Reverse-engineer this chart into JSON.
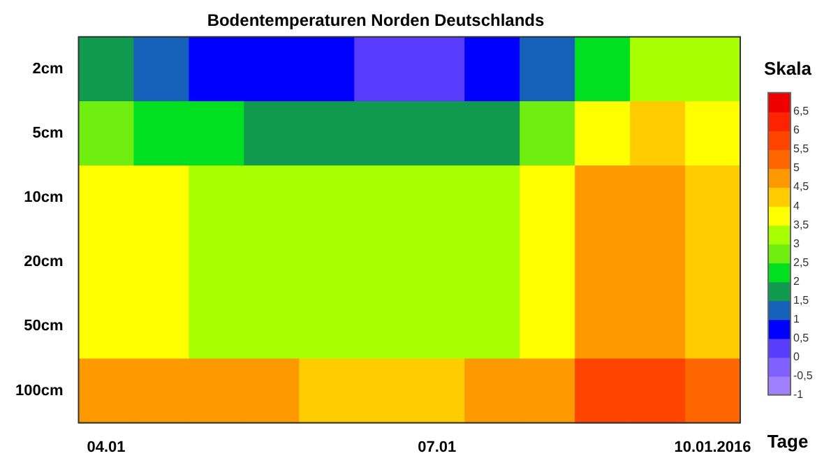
{
  "chart_data": {
    "type": "heatmap",
    "title": "Bodentemperaturen Norden Deutschlands",
    "xlabel": "Tage",
    "clabel": "Skala",
    "categories": [
      "04.01",
      null,
      null,
      null,
      null,
      null,
      "07.01",
      null,
      null,
      null,
      null,
      "10.01.2016"
    ],
    "y_categories": [
      "2cm",
      "5cm",
      "10cm",
      "20cm",
      "50cm",
      "100cm"
    ],
    "cells": [
      [
        1.75,
        1.25,
        0.75,
        0.75,
        0.75,
        0.25,
        0.25,
        0.75,
        1.25,
        2.25,
        3.25,
        3.25
      ],
      [
        2.75,
        2.25,
        2.25,
        1.75,
        1.75,
        1.75,
        1.75,
        1.75,
        2.75,
        3.75,
        4.25,
        3.75
      ],
      [
        3.75,
        3.75,
        3.25,
        3.25,
        3.25,
        3.25,
        3.25,
        3.25,
        3.75,
        4.75,
        4.75,
        4.25
      ],
      [
        3.75,
        3.75,
        3.25,
        3.25,
        3.25,
        3.25,
        3.25,
        3.25,
        3.75,
        4.75,
        4.75,
        4.25
      ],
      [
        3.75,
        3.75,
        3.25,
        3.25,
        3.25,
        3.25,
        3.25,
        3.25,
        3.75,
        4.75,
        4.75,
        4.25
      ],
      [
        4.75,
        4.75,
        4.75,
        4.75,
        4.25,
        4.25,
        4.25,
        4.75,
        4.75,
        5.75,
        5.75,
        5.25
      ]
    ],
    "clim": [
      -1,
      7
    ],
    "cticks": [
      -1,
      {
        "value": -0.5,
        "label": "-0,5"
      },
      0,
      {
        "value": 0.5,
        "label": "0,5"
      },
      1,
      {
        "value": 1.5,
        "label": "1,5"
      },
      2,
      {
        "value": 2.5,
        "label": "2,5"
      },
      3,
      {
        "value": 3.5,
        "label": "3,5"
      },
      4,
      {
        "value": 4.5,
        "label": "4,5"
      },
      5,
      {
        "value": 5.5,
        "label": "5,5"
      },
      6,
      {
        "value": 6.5,
        "label": "6,5"
      }
    ]
  }
}
